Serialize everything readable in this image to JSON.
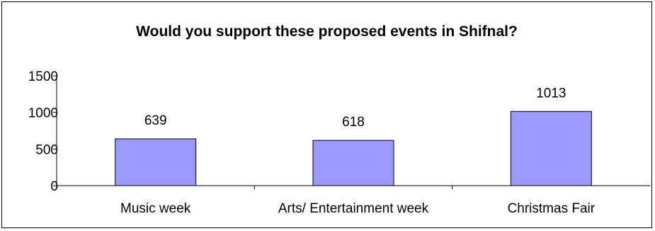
{
  "chart_data": {
    "type": "bar",
    "title": "Would you support these proposed events in Shifnal?",
    "xlabel": "",
    "ylabel": "",
    "categories": [
      "Music week",
      "Arts/ Entertainment week",
      "Christmas Fair"
    ],
    "values": [
      639,
      618,
      1013
    ],
    "data_labels": [
      "639",
      "618",
      "1013"
    ],
    "ylim": [
      0,
      1500
    ],
    "yticks": [
      0,
      500,
      1000,
      1500
    ],
    "ytick_labels": [
      "0",
      "500",
      "1000",
      "1500"
    ],
    "grid": false,
    "legend": "none",
    "bar_color": "#9999ff",
    "bar_edge_color": "#000000"
  }
}
